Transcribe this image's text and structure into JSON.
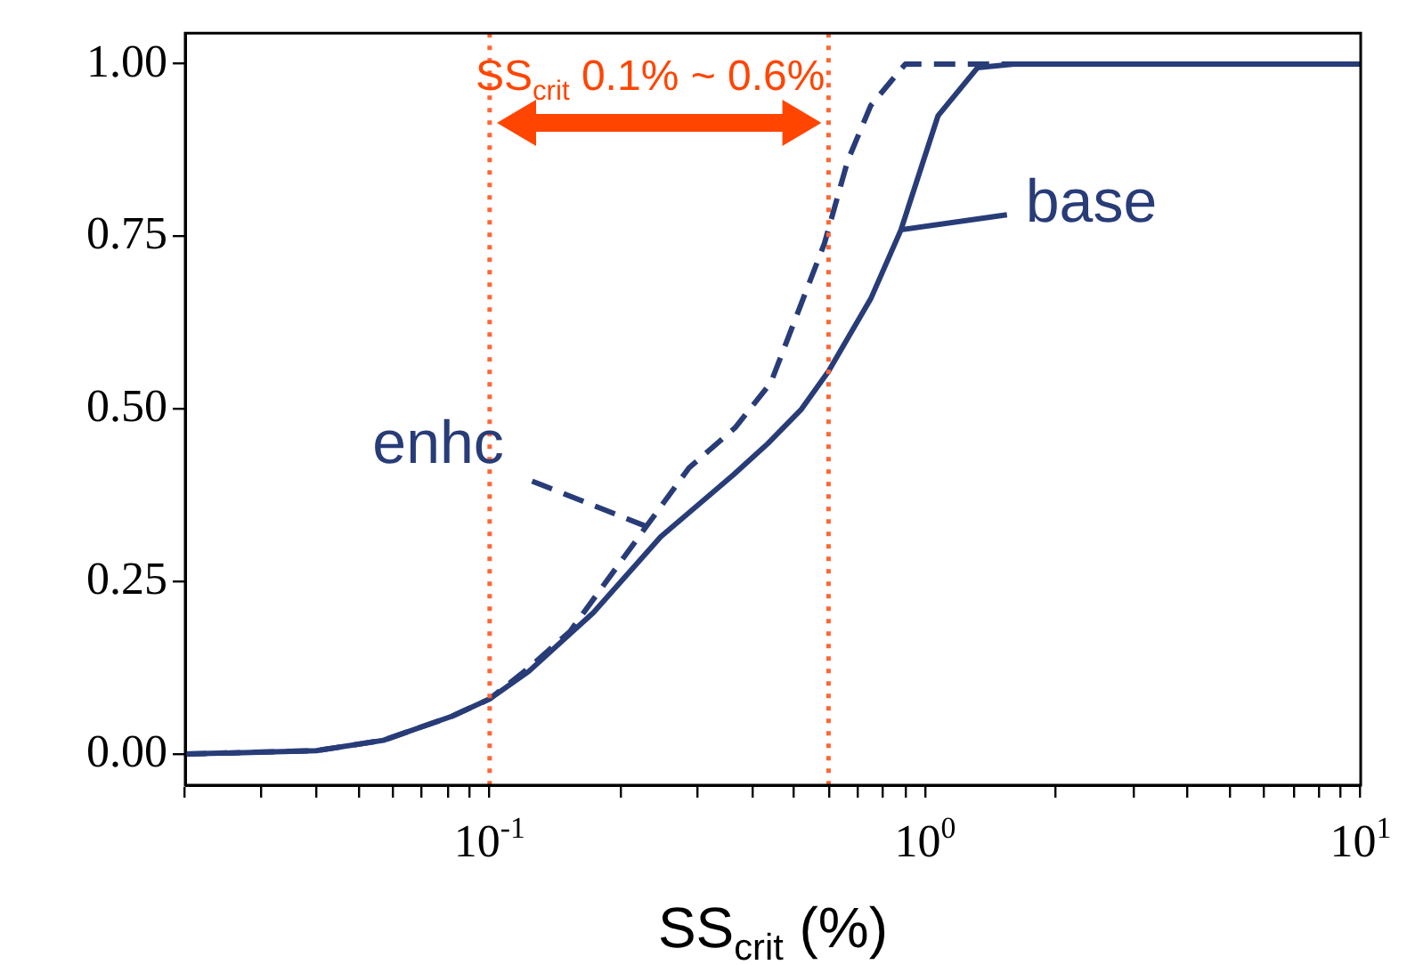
{
  "chart_data": {
    "type": "line",
    "xlabel": "SS$_{crit}$ (%)",
    "log": "x",
    "xlim": [
      0.02,
      10
    ],
    "ylim": [
      -0.045,
      1.045
    ],
    "xticks": [
      {
        "value": 0.02,
        "label": null
      },
      {
        "value": 0.03,
        "label": null
      },
      {
        "value": 0.04,
        "label": null
      },
      {
        "value": 0.05,
        "label": null
      },
      {
        "value": 0.06,
        "label": null
      },
      {
        "value": 0.07,
        "label": null
      },
      {
        "value": 0.08,
        "label": null
      },
      {
        "value": 0.09,
        "label": null
      },
      {
        "value": 0.1,
        "label": "10$^{-1}$"
      },
      {
        "value": 0.2,
        "label": null
      },
      {
        "value": 0.3,
        "label": null
      },
      {
        "value": 0.4,
        "label": null
      },
      {
        "value": 0.5,
        "label": null
      },
      {
        "value": 0.6,
        "label": null
      },
      {
        "value": 0.7,
        "label": null
      },
      {
        "value": 0.8,
        "label": null
      },
      {
        "value": 0.9,
        "label": null
      },
      {
        "value": 1,
        "label": "10$^{0}$"
      },
      {
        "value": 2,
        "label": null
      },
      {
        "value": 3,
        "label": null
      },
      {
        "value": 4,
        "label": null
      },
      {
        "value": 5,
        "label": null
      },
      {
        "value": 6,
        "label": null
      },
      {
        "value": 7,
        "label": null
      },
      {
        "value": 8,
        "label": null
      },
      {
        "value": 9,
        "label": null
      },
      {
        "value": 10,
        "label": "10$^{1}$"
      }
    ],
    "yticks": [
      {
        "value": 0,
        "label": "0.00"
      },
      {
        "value": 0.25,
        "label": "0.25"
      },
      {
        "value": 0.5,
        "label": "0.50"
      },
      {
        "value": 0.75,
        "label": "0.75"
      },
      {
        "value": 1,
        "label": "1.00"
      }
    ],
    "grid": false,
    "legend": "right",
    "series": [
      {
        "name": "base",
        "color": "#283c78",
        "line_style": "solid",
        "x": [
          0.02,
          0.04,
          0.057,
          0.082,
          0.1,
          0.123,
          0.173,
          0.247,
          0.363,
          0.435,
          0.52,
          0.6,
          0.75,
          0.88,
          1.07,
          1.32,
          1.6,
          10
        ],
        "values": [
          0,
          0.005,
          0.02,
          0.055,
          0.08,
          0.12,
          0.205,
          0.315,
          0.405,
          0.45,
          0.5,
          0.555,
          0.66,
          0.76,
          0.925,
          0.995,
          1,
          1
        ]
      },
      {
        "name": "enhc",
        "color": "#283c78",
        "line_style": "dashed",
        "x": [
          0.02,
          0.04,
          0.057,
          0.082,
          0.1,
          0.123,
          0.153,
          0.229,
          0.287,
          0.366,
          0.442,
          0.587,
          0.664,
          0.75,
          0.9,
          10
        ],
        "values": [
          0,
          0.005,
          0.02,
          0.055,
          0.08,
          0.125,
          0.178,
          0.33,
          0.415,
          0.473,
          0.538,
          0.74,
          0.86,
          0.94,
          1,
          1
        ]
      }
    ],
    "ref_lines": [
      {
        "axis": "x",
        "value": 0.1,
        "color": "#ff6633",
        "line_style": "dotted"
      },
      {
        "axis": "x",
        "value": 0.6,
        "color": "#ff6633",
        "line_style": "dotted"
      }
    ],
    "annotations": [
      "SS$_{crit}$ 0.1% ~ 0.6%"
    ]
  }
}
